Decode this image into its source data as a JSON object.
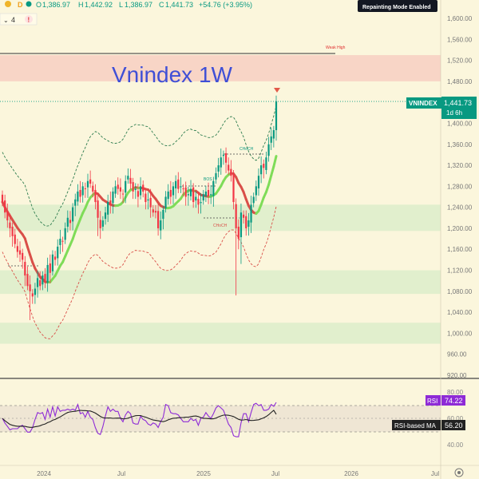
{
  "ohlc_bar": {
    "open_label": "O",
    "open": "1,386.97",
    "high_label": "H",
    "high": "1,442.92",
    "low_label": "L",
    "low": "1,386.97",
    "close_label": "C",
    "close": "1,441.73",
    "change": "+54.76 (+3.95%)"
  },
  "toolbar": {
    "indicator_count": "4",
    "alert_mark": "!"
  },
  "badges": {
    "repainting": "Repainting Mode Enabled"
  },
  "annotations": {
    "title": "Vnindex 1W",
    "weak_high": "Weak High",
    "choch_top": "CHoCH",
    "bos": "BOS",
    "choch_low": "CHoCH"
  },
  "price_tag": {
    "symbol": "VNINDEX",
    "price": "1,441.73",
    "countdown": "1d 6h"
  },
  "rsi_labels": {
    "rsi_name": "RSI",
    "rsi_value": "74.22",
    "ma_name": "RSI-based MA",
    "ma_value": "56.20"
  },
  "colors": {
    "up": "#089981",
    "down": "#f23645",
    "price_tag": "#089981",
    "title": "#3f4fd6",
    "rsi": "#8e2bd6",
    "supply_zone": "#f7cfc2",
    "demand_zone": "#d8ecc8",
    "ma_up": "#7fdc58",
    "ma_down": "#d94f48"
  },
  "chart_data": [
    {
      "type": "candlestick",
      "symbol": "VNINDEX",
      "timeframe": "1W",
      "title": "Vnindex 1W",
      "y_ticks": [
        1600,
        1560,
        1520,
        1480,
        1440,
        1400,
        1360,
        1320,
        1280,
        1240,
        1200,
        1160,
        1120,
        1080,
        1040,
        1000,
        960,
        920
      ],
      "y_tick_labels": [
        "1,600.00",
        "1,560.00",
        "1,520.00",
        "1,480.00",
        "1,440.00",
        "1,400.00",
        "1,360.00",
        "1,320.00",
        "1,280.00",
        "1,240.00",
        "1,200.00",
        "1,160.00",
        "1,120.00",
        "1,080.00",
        "1,040.00",
        "1,000.00",
        "960.00",
        "920.00"
      ],
      "ylim": [
        915,
        1630
      ],
      "x_tick_labels": [
        "2024",
        "Jul",
        "2025",
        "Jul",
        "2026",
        "Jul"
      ],
      "closes": [
        1250,
        1230,
        1215,
        1200,
        1185,
        1170,
        1155,
        1150,
        1140,
        1110,
        1090,
        1080,
        1070,
        1085,
        1105,
        1090,
        1110,
        1100,
        1130,
        1115,
        1150,
        1140,
        1165,
        1180,
        1175,
        1200,
        1220,
        1210,
        1240,
        1255,
        1270,
        1260,
        1280,
        1275,
        1290,
        1285,
        1270,
        1250,
        1220,
        1200,
        1215,
        1230,
        1250,
        1245,
        1270,
        1280,
        1275,
        1270,
        1265,
        1290,
        1300,
        1285,
        1270,
        1275,
        1260,
        1280,
        1270,
        1250,
        1255,
        1240,
        1230,
        1230,
        1200,
        1215,
        1235,
        1260,
        1270,
        1260,
        1280,
        1290,
        1275,
        1280,
        1275,
        1260,
        1265,
        1275,
        1250,
        1260,
        1245,
        1250,
        1265,
        1270,
        1260,
        1265,
        1290,
        1305,
        1320,
        1335,
        1340,
        1325,
        1310,
        1300,
        1250,
        1200,
        1180,
        1230,
        1220,
        1200,
        1215,
        1245,
        1260,
        1280,
        1300,
        1320,
        1315,
        1335,
        1360,
        1375,
        1386.97,
        1441.73
      ],
      "ma": {
        "name": "Moving average",
        "start": 1185,
        "trough": 1130,
        "end": 1305
      },
      "rsi": {
        "name": "RSI",
        "value": 74.22,
        "ma_name": "RSI-based MA",
        "ma_value": 56.2,
        "levels": [
          70,
          50,
          30
        ],
        "ylim": [
          0,
          100
        ]
      },
      "zones": [
        {
          "kind": "supply",
          "from": 1480,
          "to": 1530
        },
        {
          "kind": "demand",
          "from": 1195,
          "to": 1245
        },
        {
          "kind": "demand",
          "from": 1075,
          "to": 1120
        },
        {
          "kind": "demand",
          "from": 980,
          "to": 1020
        }
      ],
      "levels": {
        "weak_high": 1533,
        "last_price": 1441.73
      }
    }
  ]
}
